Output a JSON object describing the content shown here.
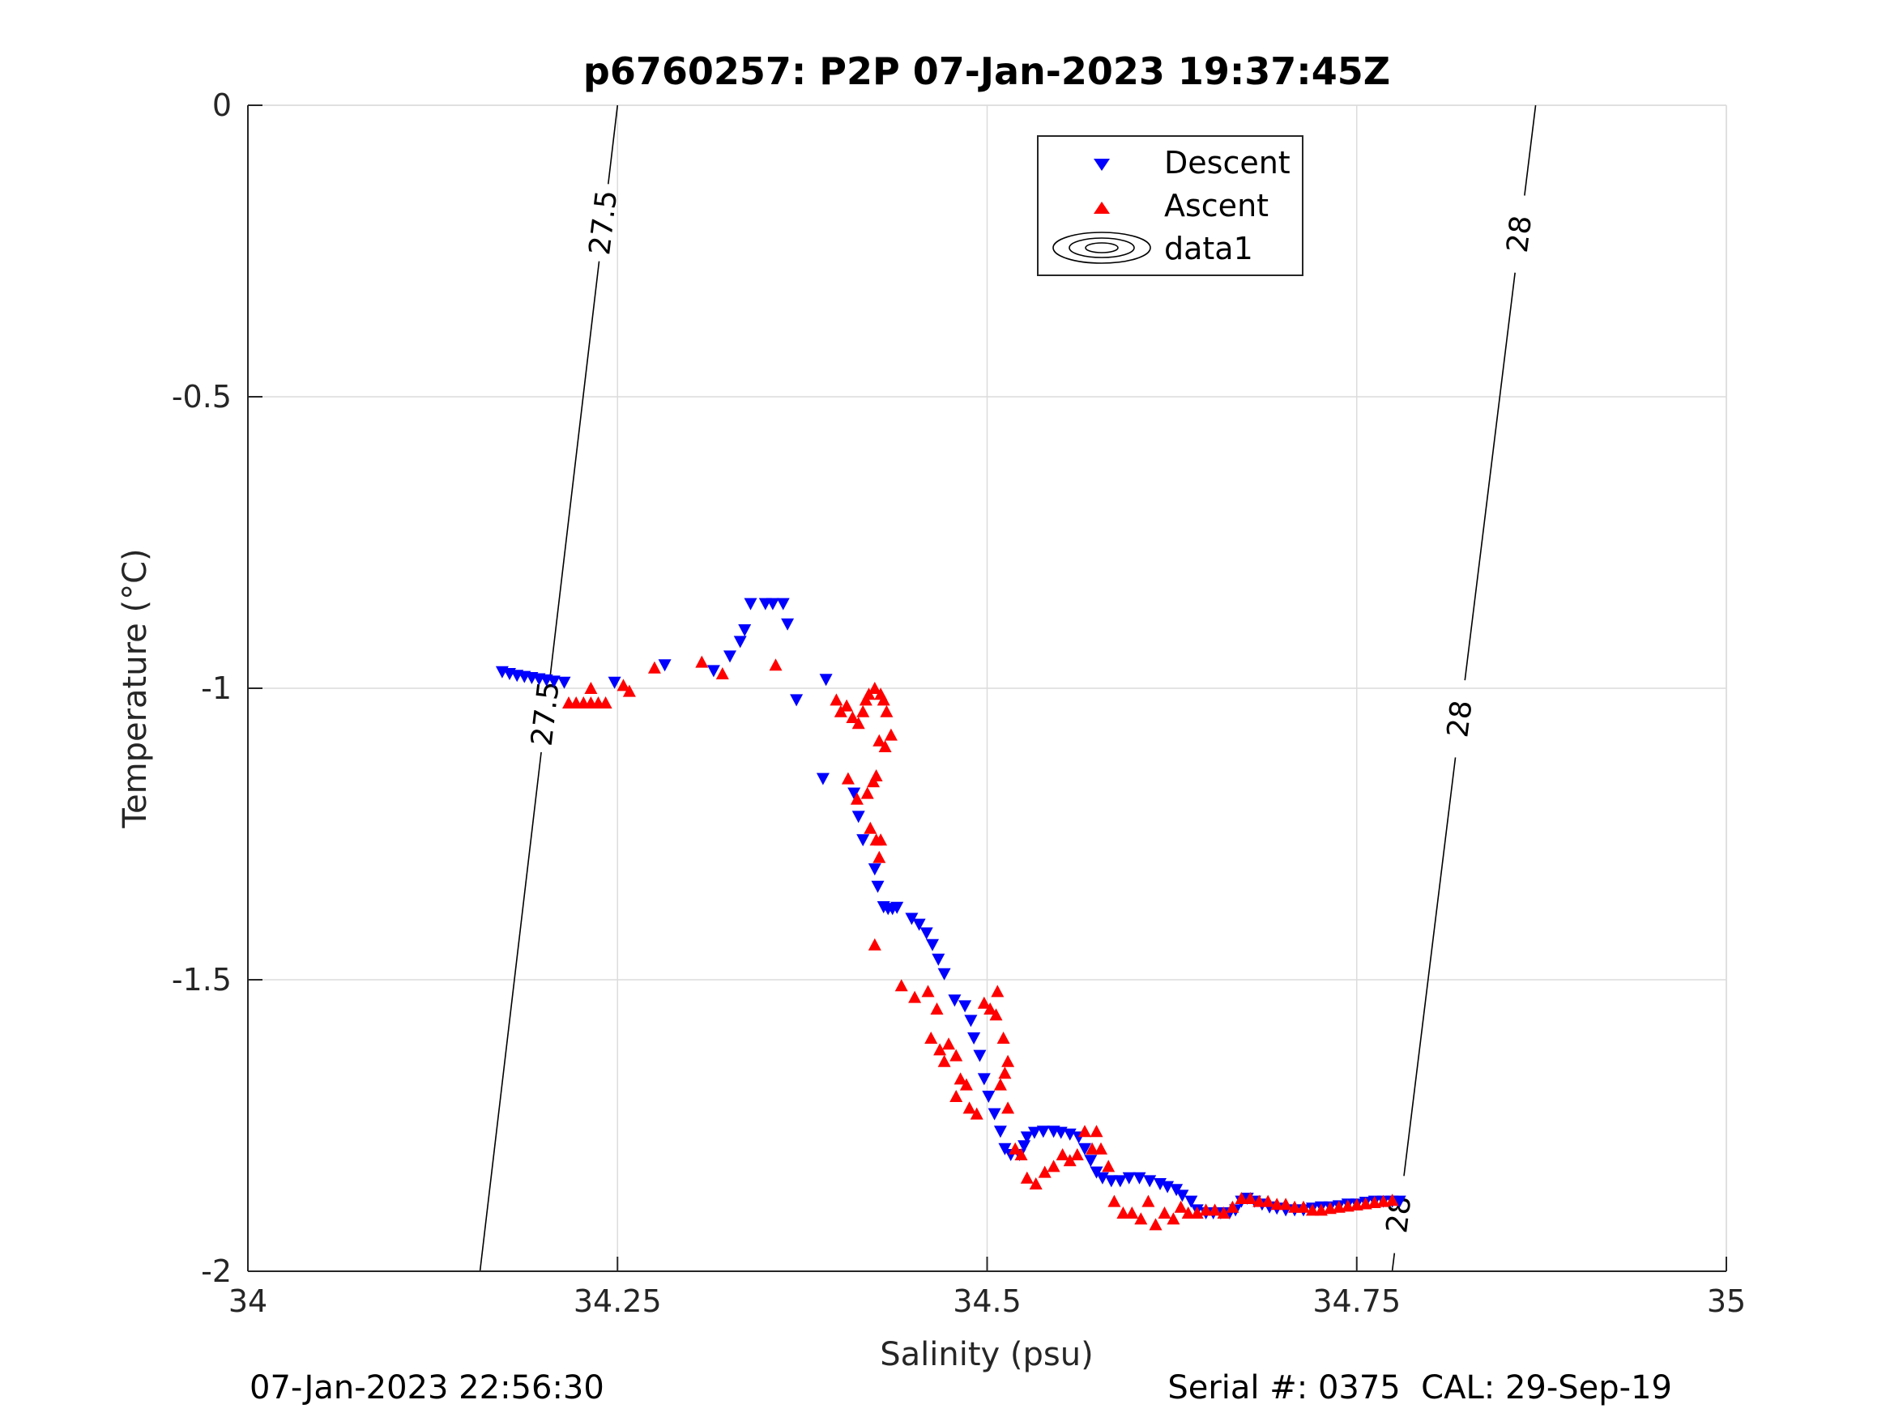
{
  "chart_data": {
    "type": "scatter",
    "title": "p6760257: P2P 07-Jan-2023 19:37:45Z",
    "xlabel": "Salinity (psu)",
    "ylabel": "Temperature (°C)",
    "xlim": [
      34,
      35
    ],
    "ylim": [
      -2,
      0
    ],
    "x_ticks": [
      34,
      34.25,
      34.5,
      34.75,
      35
    ],
    "x_tick_labels": [
      "34",
      "34.25",
      "34.5",
      "34.75",
      "35"
    ],
    "y_ticks": [
      -2,
      -1.5,
      -1,
      -0.5,
      0
    ],
    "y_tick_labels": [
      "-2",
      "-1.5",
      "-1",
      "-0.5",
      "0"
    ],
    "grid": true,
    "legend": {
      "placement": "top-center",
      "entries": [
        "Descent",
        "Ascent",
        "data1"
      ]
    },
    "colors": {
      "descent": "#0000ff",
      "ascent": "#ff0000",
      "contour": "#000000"
    },
    "series": [
      {
        "name": "Descent",
        "marker": "triangle-down",
        "color": "#0000ff",
        "points": [
          [
            34.172,
            -0.972
          ],
          [
            34.177,
            -0.975
          ],
          [
            34.182,
            -0.978
          ],
          [
            34.187,
            -0.98
          ],
          [
            34.192,
            -0.982
          ],
          [
            34.197,
            -0.984
          ],
          [
            34.202,
            -0.986
          ],
          [
            34.207,
            -0.988
          ],
          [
            34.214,
            -0.99
          ],
          [
            34.248,
            -0.99
          ],
          [
            34.282,
            -0.96
          ],
          [
            34.315,
            -0.97
          ],
          [
            34.326,
            -0.945
          ],
          [
            34.333,
            -0.92
          ],
          [
            34.336,
            -0.9
          ],
          [
            34.34,
            -0.855
          ],
          [
            34.35,
            -0.855
          ],
          [
            34.355,
            -0.855
          ],
          [
            34.362,
            -0.855
          ],
          [
            34.365,
            -0.89
          ],
          [
            34.371,
            -1.02
          ],
          [
            34.391,
            -0.985
          ],
          [
            34.389,
            -1.155
          ],
          [
            34.41,
            -1.18
          ],
          [
            34.413,
            -1.22
          ],
          [
            34.416,
            -1.26
          ],
          [
            34.424,
            -1.31
          ],
          [
            34.426,
            -1.34
          ],
          [
            34.43,
            -1.375
          ],
          [
            34.433,
            -1.378
          ],
          [
            34.436,
            -1.378
          ],
          [
            34.439,
            -1.376
          ],
          [
            34.449,
            -1.395
          ],
          [
            34.454,
            -1.405
          ],
          [
            34.459,
            -1.42
          ],
          [
            34.463,
            -1.44
          ],
          [
            34.467,
            -1.465
          ],
          [
            34.471,
            -1.49
          ],
          [
            34.478,
            -1.535
          ],
          [
            34.485,
            -1.545
          ],
          [
            34.489,
            -1.57
          ],
          [
            34.491,
            -1.6
          ],
          [
            34.495,
            -1.63
          ],
          [
            34.498,
            -1.67
          ],
          [
            34.501,
            -1.7
          ],
          [
            34.505,
            -1.73
          ],
          [
            34.509,
            -1.76
          ],
          [
            34.512,
            -1.79
          ],
          [
            34.516,
            -1.8
          ],
          [
            34.522,
            -1.8
          ],
          [
            34.525,
            -1.785
          ],
          [
            34.527,
            -1.77
          ],
          [
            34.532,
            -1.762
          ],
          [
            34.538,
            -1.76
          ],
          [
            34.545,
            -1.76
          ],
          [
            34.55,
            -1.762
          ],
          [
            34.556,
            -1.765
          ],
          [
            34.562,
            -1.77
          ],
          [
            34.566,
            -1.79
          ],
          [
            34.57,
            -1.81
          ],
          [
            34.574,
            -1.83
          ],
          [
            34.578,
            -1.84
          ],
          [
            34.584,
            -1.845
          ],
          [
            34.59,
            -1.845
          ],
          [
            34.596,
            -1.84
          ],
          [
            34.603,
            -1.84
          ],
          [
            34.61,
            -1.845
          ],
          [
            34.617,
            -1.85
          ],
          [
            34.622,
            -1.855
          ],
          [
            34.628,
            -1.86
          ],
          [
            34.632,
            -1.87
          ],
          [
            34.638,
            -1.88
          ],
          [
            34.642,
            -1.895
          ],
          [
            34.648,
            -1.9
          ],
          [
            34.653,
            -1.9
          ],
          [
            34.658,
            -1.9
          ],
          [
            34.664,
            -1.9
          ],
          [
            34.668,
            -1.895
          ],
          [
            34.672,
            -1.88
          ],
          [
            34.676,
            -1.875
          ],
          [
            34.681,
            -1.88
          ],
          [
            34.686,
            -1.885
          ],
          [
            34.691,
            -1.89
          ],
          [
            34.696,
            -1.892
          ],
          [
            34.702,
            -1.895
          ],
          [
            34.708,
            -1.895
          ],
          [
            34.714,
            -1.895
          ],
          [
            34.72,
            -1.892
          ],
          [
            34.726,
            -1.89
          ],
          [
            34.732,
            -1.89
          ],
          [
            34.738,
            -1.888
          ],
          [
            34.744,
            -1.885
          ],
          [
            34.75,
            -1.885
          ],
          [
            34.756,
            -1.882
          ],
          [
            34.762,
            -1.88
          ],
          [
            34.768,
            -1.88
          ],
          [
            34.774,
            -1.88
          ],
          [
            34.779,
            -1.88
          ]
        ]
      },
      {
        "name": "Ascent",
        "marker": "triangle-up",
        "color": "#ff0000",
        "points": [
          [
            34.217,
            -1.025
          ],
          [
            34.222,
            -1.025
          ],
          [
            34.227,
            -1.025
          ],
          [
            34.232,
            -1.025
          ],
          [
            34.237,
            -1.025
          ],
          [
            34.232,
            -1.0
          ],
          [
            34.242,
            -1.025
          ],
          [
            34.254,
            -0.995
          ],
          [
            34.258,
            -1.005
          ],
          [
            34.275,
            -0.965
          ],
          [
            34.307,
            -0.955
          ],
          [
            34.321,
            -0.975
          ],
          [
            34.357,
            -0.96
          ],
          [
            34.398,
            -1.02
          ],
          [
            34.401,
            -1.04
          ],
          [
            34.405,
            -1.03
          ],
          [
            34.409,
            -1.05
          ],
          [
            34.413,
            -1.06
          ],
          [
            34.416,
            -1.04
          ],
          [
            34.418,
            -1.02
          ],
          [
            34.42,
            -1.01
          ],
          [
            34.424,
            -1.0
          ],
          [
            34.428,
            -1.01
          ],
          [
            34.43,
            -1.02
          ],
          [
            34.432,
            -1.04
          ],
          [
            34.427,
            -1.09
          ],
          [
            34.431,
            -1.1
          ],
          [
            34.435,
            -1.08
          ],
          [
            34.406,
            -1.155
          ],
          [
            34.412,
            -1.19
          ],
          [
            34.419,
            -1.18
          ],
          [
            34.423,
            -1.16
          ],
          [
            34.425,
            -1.15
          ],
          [
            34.421,
            -1.24
          ],
          [
            34.425,
            -1.26
          ],
          [
            34.428,
            -1.26
          ],
          [
            34.427,
            -1.29
          ],
          [
            34.424,
            -1.44
          ],
          [
            34.442,
            -1.51
          ],
          [
            34.451,
            -1.53
          ],
          [
            34.46,
            -1.52
          ],
          [
            34.466,
            -1.55
          ],
          [
            34.462,
            -1.6
          ],
          [
            34.468,
            -1.62
          ],
          [
            34.474,
            -1.61
          ],
          [
            34.479,
            -1.63
          ],
          [
            34.471,
            -1.64
          ],
          [
            34.482,
            -1.67
          ],
          [
            34.486,
            -1.68
          ],
          [
            34.479,
            -1.7
          ],
          [
            34.488,
            -1.72
          ],
          [
            34.493,
            -1.73
          ],
          [
            34.498,
            -1.54
          ],
          [
            34.502,
            -1.55
          ],
          [
            34.506,
            -1.56
          ],
          [
            34.507,
            -1.52
          ],
          [
            34.511,
            -1.6
          ],
          [
            34.514,
            -1.64
          ],
          [
            34.512,
            -1.66
          ],
          [
            34.509,
            -1.68
          ],
          [
            34.514,
            -1.72
          ],
          [
            34.519,
            -1.79
          ],
          [
            34.523,
            -1.8
          ],
          [
            34.527,
            -1.84
          ],
          [
            34.533,
            -1.85
          ],
          [
            34.539,
            -1.83
          ],
          [
            34.545,
            -1.82
          ],
          [
            34.551,
            -1.8
          ],
          [
            34.556,
            -1.81
          ],
          [
            34.561,
            -1.8
          ],
          [
            34.566,
            -1.76
          ],
          [
            34.571,
            -1.79
          ],
          [
            34.574,
            -1.76
          ],
          [
            34.577,
            -1.79
          ],
          [
            34.582,
            -1.82
          ],
          [
            34.586,
            -1.88
          ],
          [
            34.592,
            -1.9
          ],
          [
            34.598,
            -1.9
          ],
          [
            34.604,
            -1.91
          ],
          [
            34.609,
            -1.88
          ],
          [
            34.614,
            -1.92
          ],
          [
            34.62,
            -1.9
          ],
          [
            34.626,
            -1.91
          ],
          [
            34.631,
            -1.89
          ],
          [
            34.636,
            -1.9
          ],
          [
            34.642,
            -1.9
          ],
          [
            34.648,
            -1.895
          ],
          [
            34.654,
            -1.895
          ],
          [
            34.66,
            -1.9
          ],
          [
            34.666,
            -1.89
          ],
          [
            34.672,
            -1.875
          ],
          [
            34.678,
            -1.875
          ],
          [
            34.684,
            -1.88
          ],
          [
            34.69,
            -1.88
          ],
          [
            34.696,
            -1.885
          ],
          [
            34.702,
            -1.885
          ],
          [
            34.708,
            -1.89
          ],
          [
            34.714,
            -1.89
          ],
          [
            34.72,
            -1.895
          ],
          [
            34.726,
            -1.895
          ],
          [
            34.732,
            -1.892
          ],
          [
            34.738,
            -1.89
          ],
          [
            34.744,
            -1.888
          ],
          [
            34.75,
            -1.886
          ],
          [
            34.756,
            -1.884
          ],
          [
            34.762,
            -1.882
          ],
          [
            34.768,
            -1.88
          ],
          [
            34.774,
            -1.878
          ]
        ]
      }
    ],
    "contours": [
      {
        "label": "27.5",
        "points": [
          [
            34.157,
            -2.0
          ],
          [
            34.25,
            0.0
          ]
        ],
        "label_positions": [
          [
            34.236,
            -0.2
          ],
          [
            34.19,
            -1.04
          ]
        ]
      },
      {
        "label": "28",
        "points": [
          [
            34.774,
            -2.0
          ],
          [
            34.871,
            0.0
          ]
        ],
        "label_positions": [
          [
            34.857,
            -0.22
          ],
          [
            34.812,
            -1.05
          ],
          [
            34.77,
            -1.9
          ]
        ]
      }
    ]
  },
  "footer": {
    "timestamp": "07-Jan-2023 22:56:30",
    "serial": "Serial #: 0375  CAL: 29-Sep-19"
  }
}
